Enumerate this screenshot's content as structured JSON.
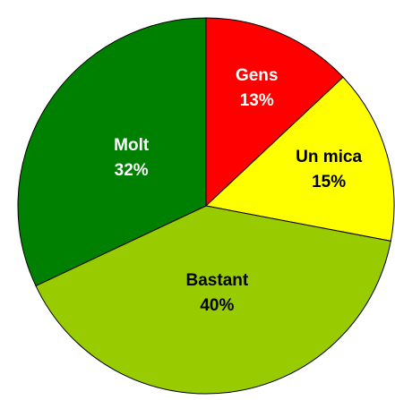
{
  "chart_data": {
    "type": "pie",
    "categories": [
      "Gens",
      "Un mica",
      "Bastant",
      "Molt"
    ],
    "values": [
      13,
      15,
      40,
      32
    ],
    "value_labels": [
      "13%",
      "15%",
      "40%",
      "32%"
    ],
    "colors": [
      "#ff0000",
      "#ffff00",
      "#99cc00",
      "#008000"
    ],
    "label_colors": [
      "#ffffff",
      "#000000",
      "#000000",
      "#ffffff"
    ]
  }
}
